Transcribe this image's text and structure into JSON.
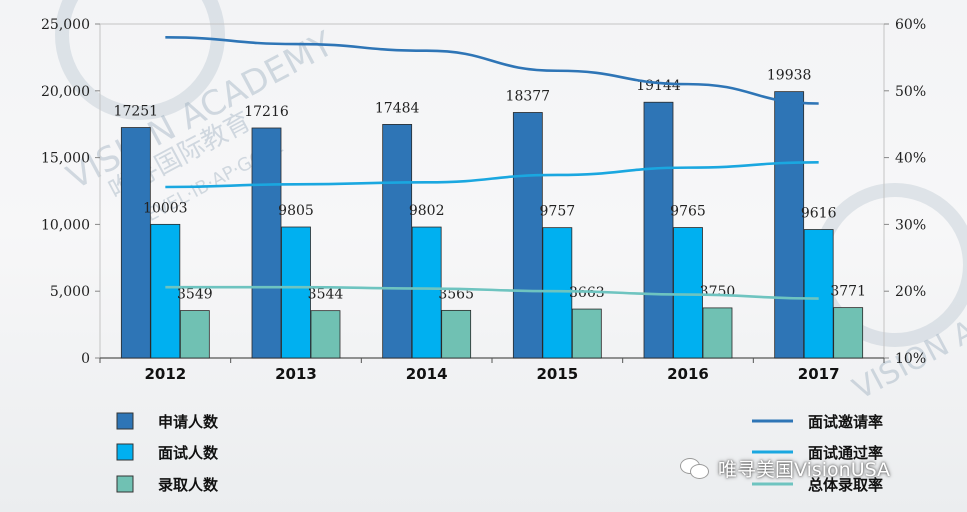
{
  "watermark": {
    "brand": "VISION ACADEMY",
    "chinese": "唯寻国际教育",
    "sub": "A-LEVEL·IB·AP·GCSE"
  },
  "wechat_note": "唯寻美国VisionUSA",
  "colors": {
    "applicants": "#2e75b6",
    "interviewed": "#00b0f0",
    "admitted": "#70c1b3",
    "invite_rate": "#2e75b6",
    "interview_pass_rate": "#1aa7e0",
    "overall_admit_rate": "#6ec4c0"
  },
  "chart_data": {
    "type": "bar",
    "categories": [
      "2012",
      "2013",
      "2014",
      "2015",
      "2016",
      "2017"
    ],
    "y_left": {
      "ylim": [
        0,
        25000
      ],
      "ticks": [
        "0",
        "5,000",
        "10,000",
        "15,000",
        "20,000",
        "25,000"
      ]
    },
    "y_right": {
      "ylim": [
        10,
        60
      ],
      "ticks": [
        "10%",
        "20%",
        "30%",
        "40%",
        "50%",
        "60%"
      ]
    },
    "series": [
      {
        "name": "申请人数",
        "kind": "bar",
        "axis": "left",
        "values": [
          17251,
          17216,
          17484,
          18377,
          19144,
          19938
        ],
        "labels": [
          "17251",
          "17216",
          "17484",
          "18377",
          "19144",
          "19938"
        ]
      },
      {
        "name": "面试人数",
        "kind": "bar",
        "axis": "left",
        "values": [
          10003,
          9805,
          9802,
          9757,
          9765,
          9616
        ],
        "labels": [
          "10003",
          "9805",
          "9802",
          "9757",
          "9765",
          "9616"
        ]
      },
      {
        "name": "录取人数",
        "kind": "bar",
        "axis": "left",
        "values": [
          3549,
          3544,
          3565,
          3663,
          3750,
          3771
        ],
        "labels": [
          "3549",
          "3544",
          "3565",
          "3663",
          "3750",
          "3771"
        ]
      },
      {
        "name": "面试邀请率",
        "kind": "line",
        "axis": "right",
        "values": [
          58.0,
          57.0,
          56.0,
          53.0,
          51.0,
          48.1
        ]
      },
      {
        "name": "面试通过率",
        "kind": "line",
        "axis": "right",
        "values": [
          35.6,
          36.0,
          36.3,
          37.4,
          38.5,
          39.3
        ]
      },
      {
        "name": "总体录取率",
        "kind": "line",
        "axis": "right",
        "values": [
          20.6,
          20.6,
          20.4,
          20.0,
          19.5,
          18.9
        ]
      }
    ],
    "legend_left": [
      "申请人数",
      "面试人数",
      "录取人数"
    ],
    "legend_right": [
      "面试邀请率",
      "面试通过率",
      "总体录取率"
    ],
    "legend_position": "bottom",
    "grid": false
  }
}
